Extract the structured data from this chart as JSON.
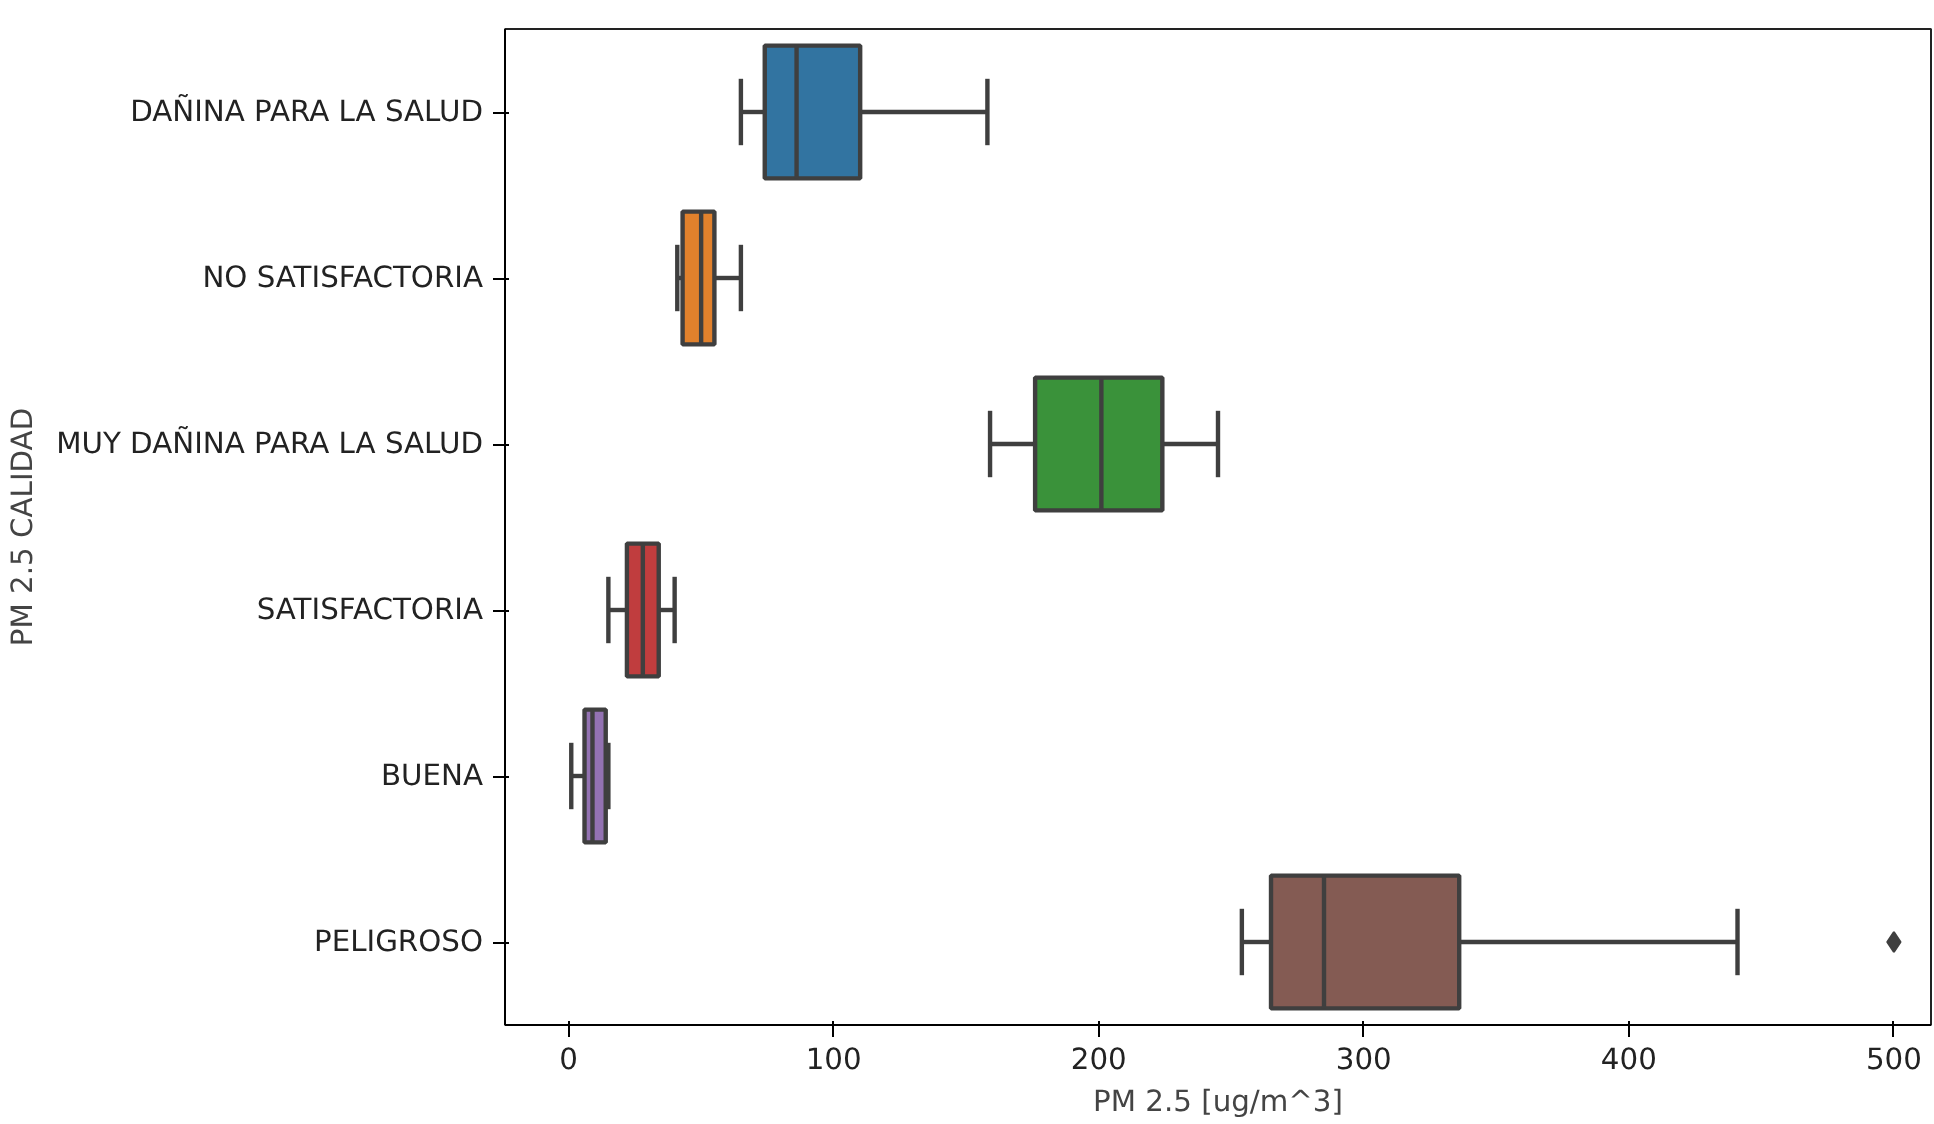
{
  "chart_data": {
    "type": "box",
    "orientation": "horizontal",
    "xlabel": "PM 2.5 [ug/m^3]",
    "ylabel": "PM 2.5 CALIDAD",
    "categories": [
      "DAÑINA PARA LA SALUD",
      "NO SATISFACTORIA",
      "MUY DAÑINA PARA LA SALUD",
      "SATISFACTORIA",
      "BUENA",
      "PELIGROSO"
    ],
    "colors": [
      "#3274a1",
      "#e1812c",
      "#3a923a",
      "#c03d3e",
      "#9372b2",
      "#845b53"
    ],
    "boxes": [
      {
        "low": 65,
        "q1": 74,
        "median": 86,
        "q3": 110,
        "high": 158
      },
      {
        "low": 41,
        "q1": 43,
        "median": 50,
        "q3": 55,
        "high": 65
      },
      {
        "low": 159,
        "q1": 176,
        "median": 201,
        "q3": 224,
        "high": 245
      },
      {
        "low": 15,
        "q1": 22,
        "median": 28,
        "q3": 34,
        "high": 40
      },
      {
        "low": 1,
        "q1": 6,
        "median": 9,
        "q3": 14,
        "high": 15
      },
      {
        "low": 254,
        "q1": 265,
        "median": 285,
        "q3": 336,
        "high": 441,
        "outliers": [
          500
        ]
      }
    ],
    "xlim": [
      -24,
      514
    ],
    "xticks": [
      0,
      100,
      200,
      300,
      400,
      500
    ],
    "grid": false,
    "marker": "diamond"
  }
}
